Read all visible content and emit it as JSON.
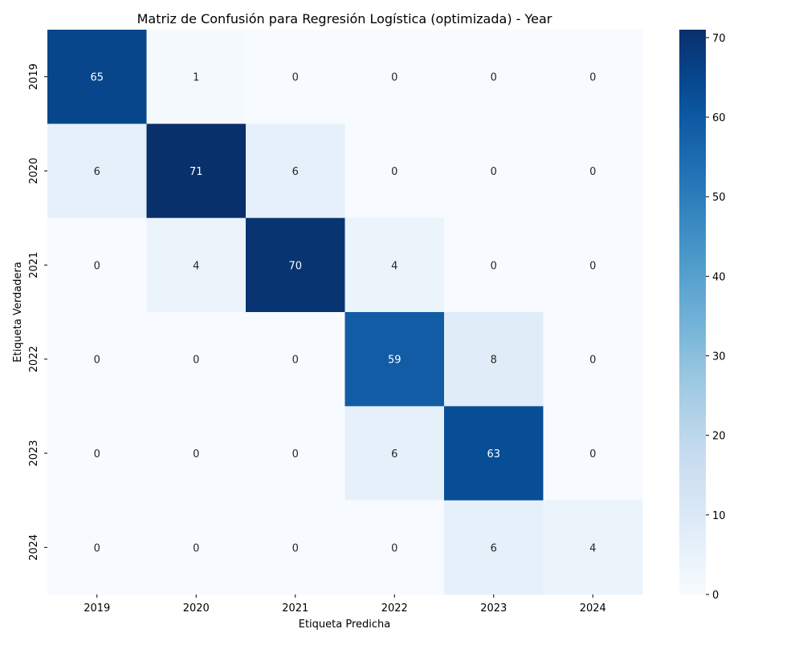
{
  "chart_data": {
    "type": "heatmap",
    "title": "Matriz de Confusión para Regresión Logística (optimizada) - Year",
    "xlabel": "Etiqueta Predicha",
    "ylabel": "Etiqueta Verdadera",
    "x_categories": [
      "2019",
      "2020",
      "2021",
      "2022",
      "2023",
      "2024"
    ],
    "y_categories": [
      "2019",
      "2020",
      "2021",
      "2022",
      "2023",
      "2024"
    ],
    "matrix": [
      [
        65,
        1,
        0,
        0,
        0,
        0
      ],
      [
        6,
        71,
        6,
        0,
        0,
        0
      ],
      [
        0,
        4,
        70,
        4,
        0,
        0
      ],
      [
        0,
        0,
        0,
        59,
        8,
        0
      ],
      [
        0,
        0,
        0,
        6,
        63,
        0
      ],
      [
        0,
        0,
        0,
        0,
        6,
        4
      ]
    ],
    "colorbar": {
      "min": 0,
      "max": 71,
      "ticks": [
        0,
        10,
        20,
        30,
        40,
        50,
        60,
        70
      ],
      "colormap": "Blues"
    }
  }
}
